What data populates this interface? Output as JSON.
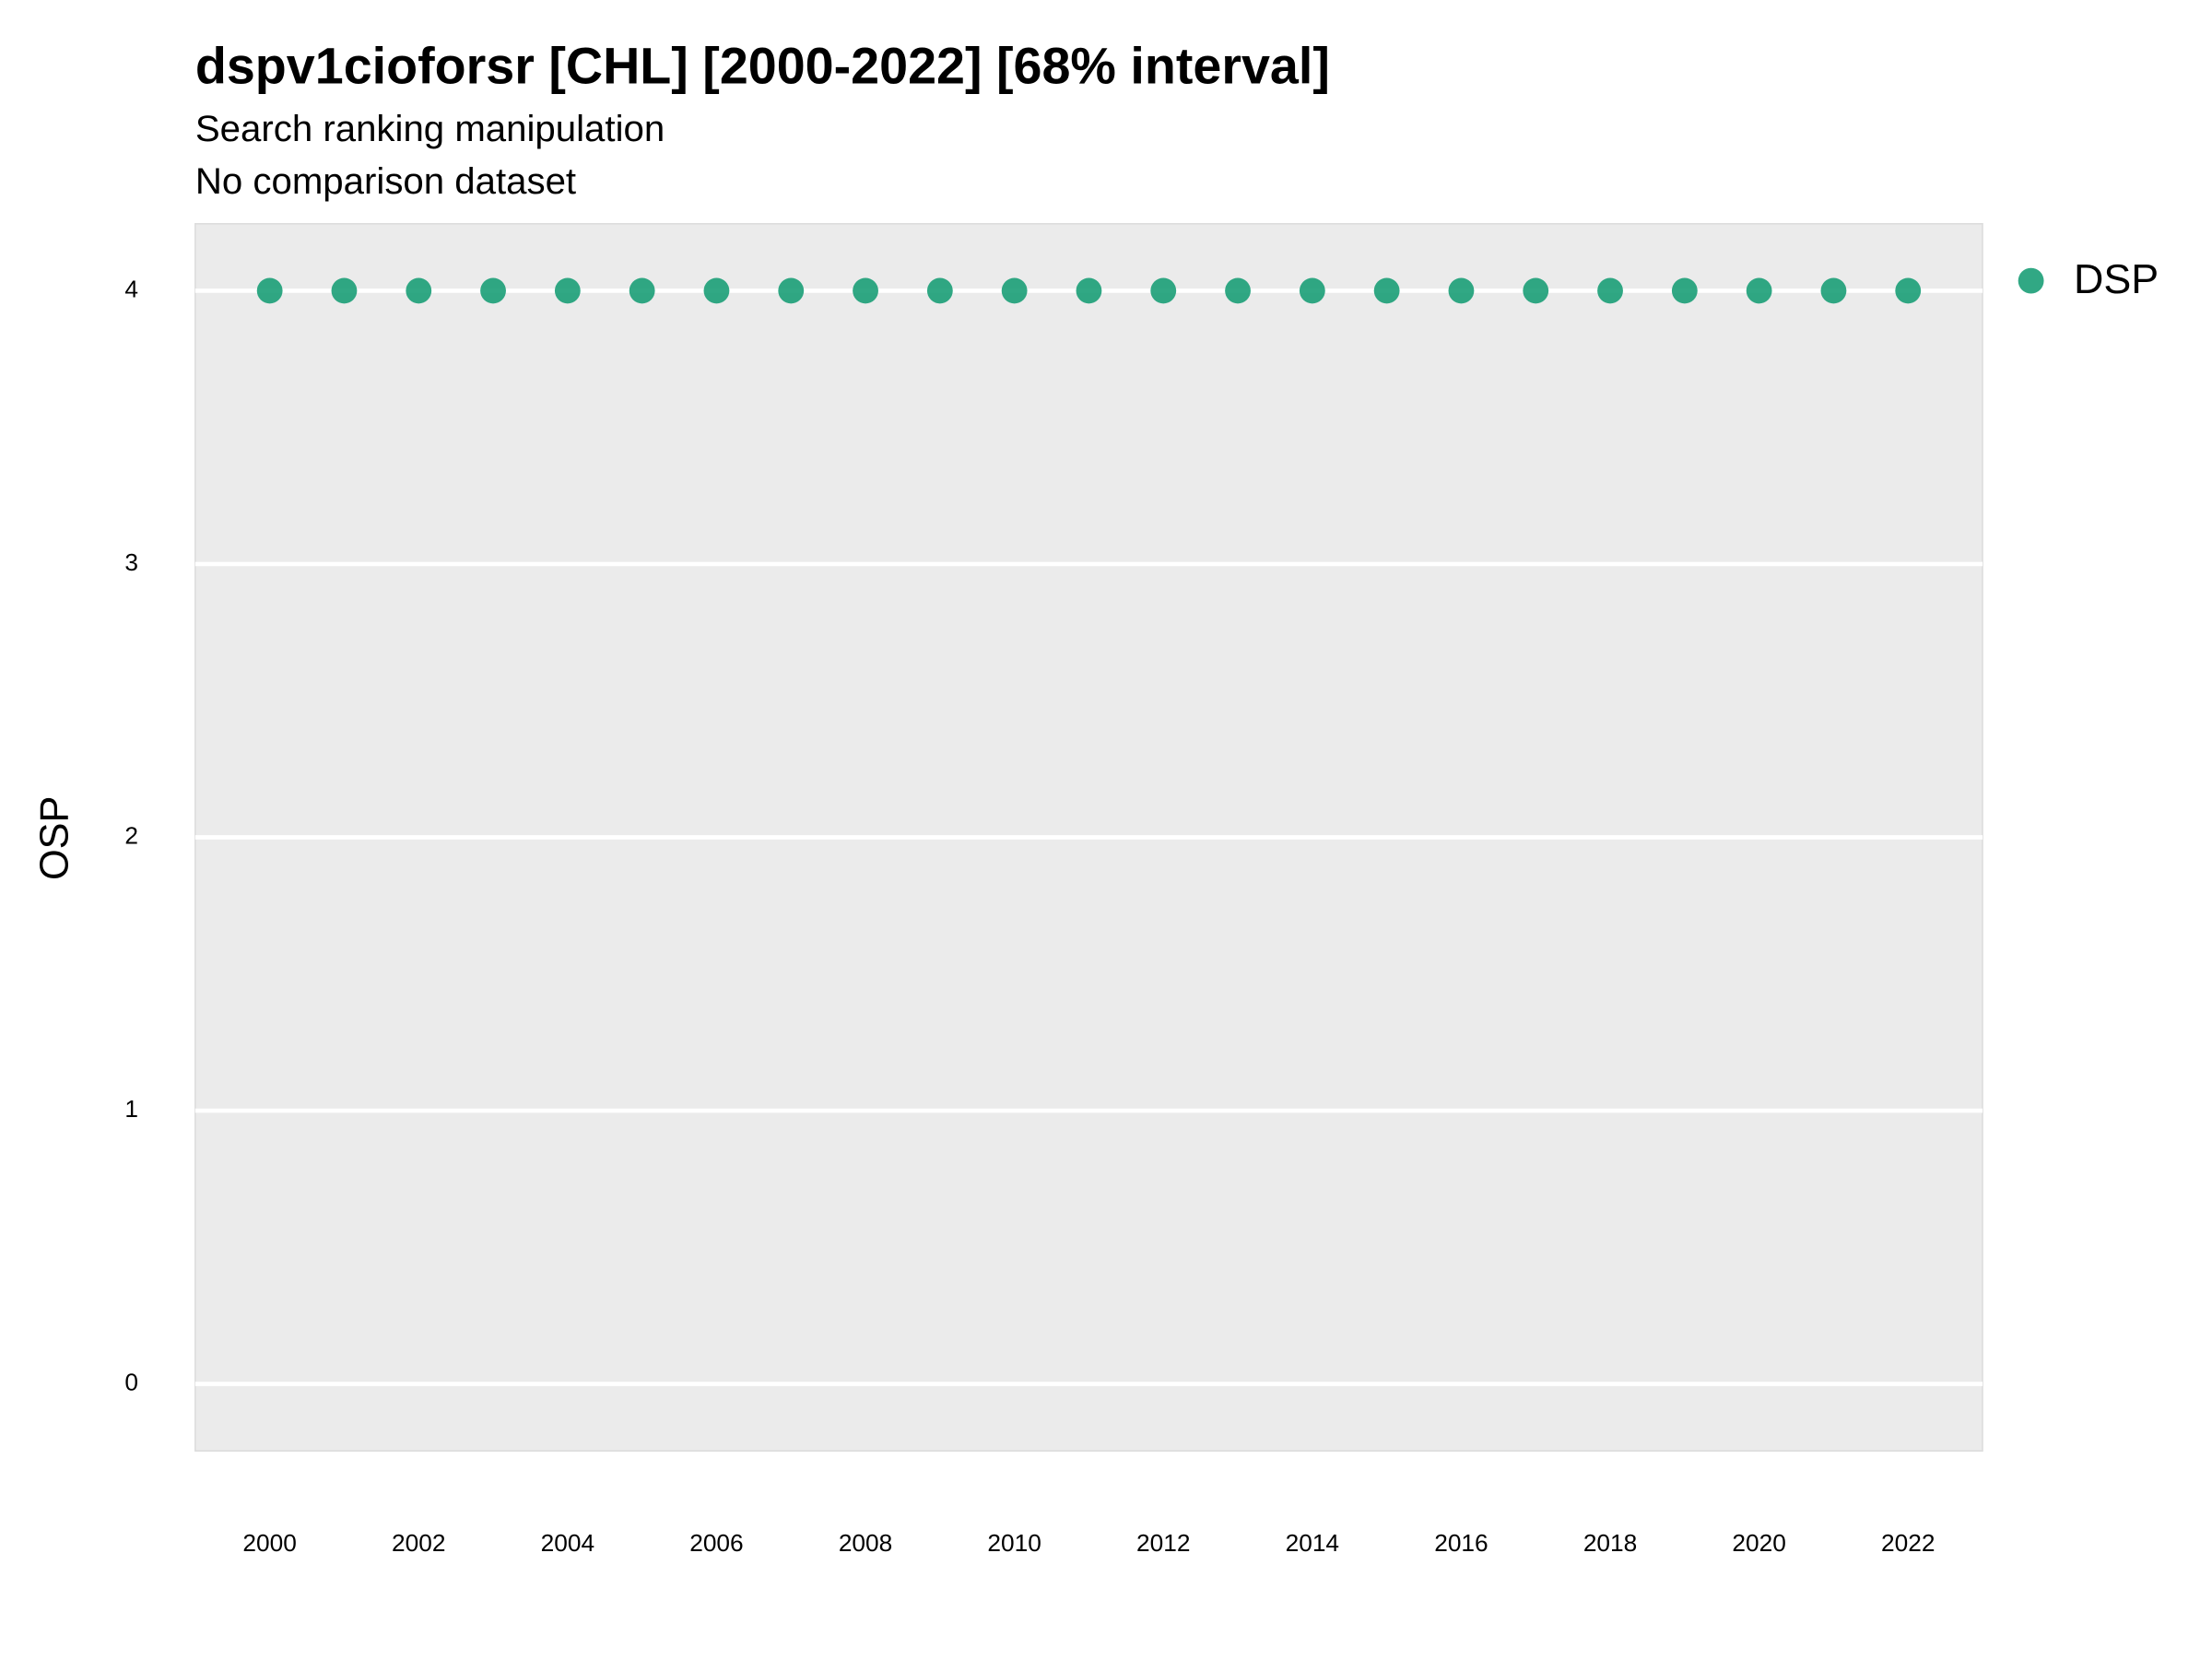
{
  "chart_data": {
    "type": "scatter",
    "title": "dspv1cioforsr [CHL] [2000-2022] [68% interval]",
    "subtitles": [
      "Search ranking manipulation",
      "No comparison dataset"
    ],
    "y_label": "OSP",
    "x": [
      2000,
      2001,
      2002,
      2003,
      2004,
      2005,
      2006,
      2007,
      2008,
      2009,
      2010,
      2011,
      2012,
      2013,
      2014,
      2015,
      2016,
      2017,
      2018,
      2019,
      2020,
      2021,
      2022
    ],
    "series": [
      {
        "name": "DSP",
        "color": "#1b9e77",
        "values": [
          4,
          4,
          4,
          4,
          4,
          4,
          4,
          4,
          4,
          4,
          4,
          4,
          4,
          4,
          4,
          4,
          4,
          4,
          4,
          4,
          4,
          4,
          4
        ]
      }
    ],
    "xlim": [
      1999,
      2023
    ],
    "xticks": [
      2000,
      2002,
      2004,
      2006,
      2008,
      2010,
      2012,
      2014,
      2016,
      2018,
      2020,
      2022
    ],
    "ylim": [
      -0.245,
      4.245
    ],
    "yticks": [
      0,
      1,
      2,
      3,
      4
    ],
    "grid": true,
    "legend": "right"
  }
}
